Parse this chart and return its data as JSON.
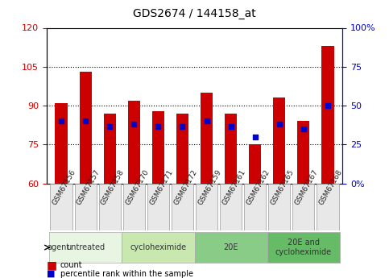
{
  "title": "GDS2674 / 144158_at",
  "samples": [
    "GSM67156",
    "GSM67157",
    "GSM67158",
    "GSM67170",
    "GSM67171",
    "GSM67172",
    "GSM67159",
    "GSM67161",
    "GSM67162",
    "GSM67165",
    "GSM67167",
    "GSM67168"
  ],
  "bar_heights": [
    91,
    103,
    87,
    92,
    88,
    87,
    95,
    87,
    75,
    93,
    84,
    113
  ],
  "blue_dots": [
    84,
    84,
    82,
    83,
    82,
    82,
    84,
    82,
    78,
    83,
    81,
    90
  ],
  "ymin": 60,
  "ymax": 120,
  "yticks": [
    60,
    75,
    90,
    105,
    120
  ],
  "y2ticks": [
    0,
    25,
    50,
    75,
    100
  ],
  "y2labels": [
    "0%",
    "25",
    "50",
    "75",
    "100%"
  ],
  "bar_color": "#cc0000",
  "dot_color": "#0000cc",
  "bg_color": "#ffffff",
  "plot_bg": "#ffffff",
  "grid_color": "#000000",
  "agent_groups": [
    {
      "label": "untreated",
      "start": 0,
      "end": 3,
      "color": "#d9f0d3"
    },
    {
      "label": "cycloheximide",
      "start": 3,
      "end": 6,
      "color": "#b2e0a0"
    },
    {
      "label": "20E",
      "start": 6,
      "end": 9,
      "color": "#66cc66"
    },
    {
      "label": "20E and\ncycloheximide",
      "start": 9,
      "end": 12,
      "color": "#33bb33"
    }
  ],
  "legend_count_label": "count",
  "legend_pct_label": "percentile rank within the sample",
  "tick_color_left": "#cc0000",
  "tick_color_right": "#0000cc",
  "bar_width": 0.5,
  "xlabel_rotation": 60
}
